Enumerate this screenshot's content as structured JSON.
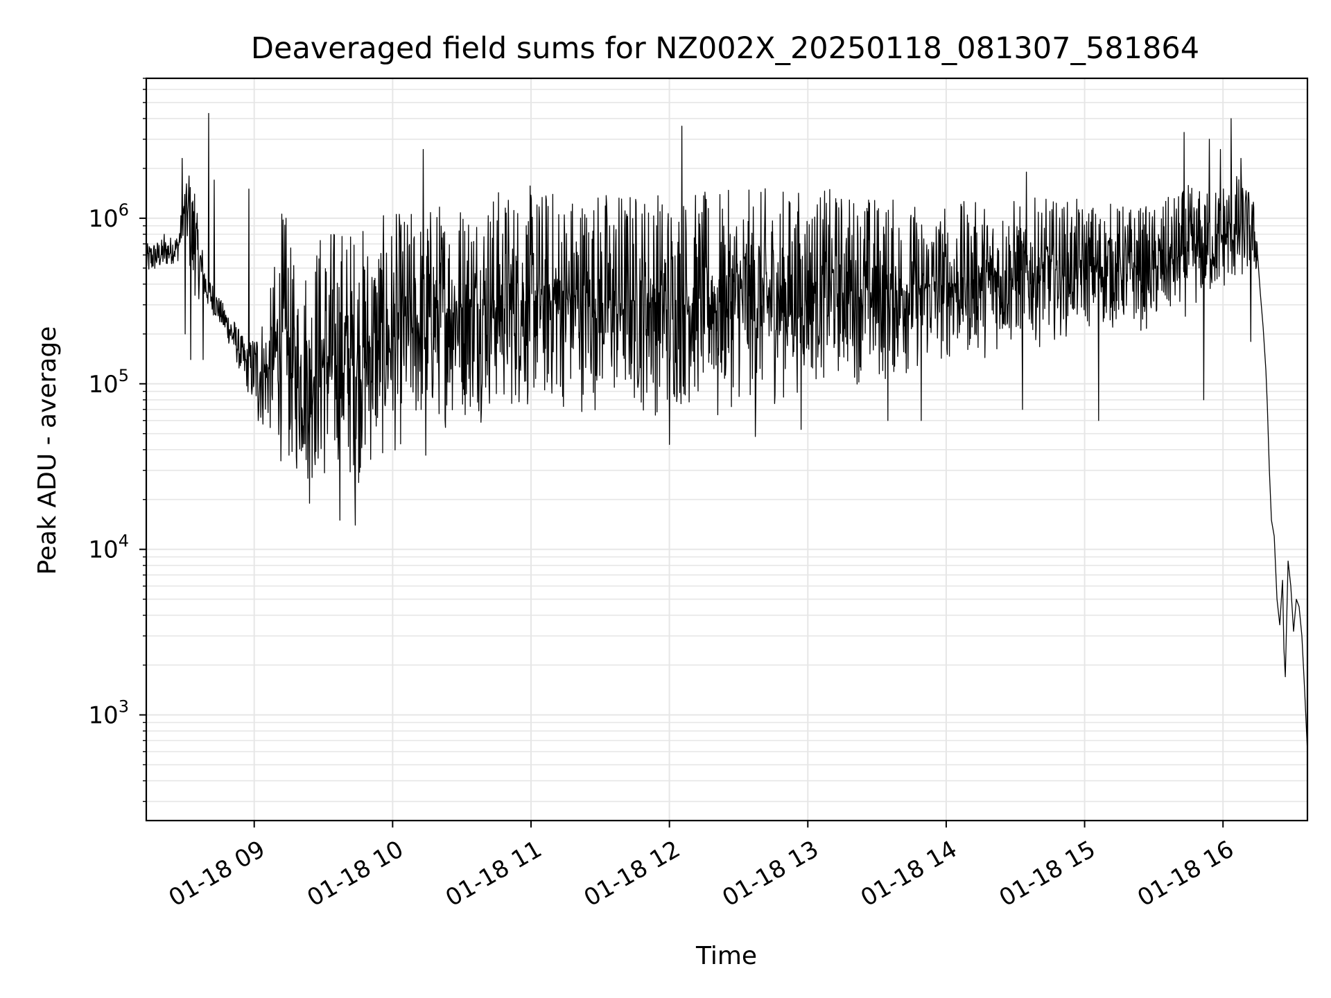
{
  "chart_data": {
    "type": "line",
    "title": "Deaveraged field sums for NZ002X_20250118_081307_581864",
    "xlabel": "Time",
    "ylabel": "Peak ADU - average",
    "x_unit": "hour of 2025-01-18",
    "xlim": [
      8.22,
      16.61
    ],
    "ylim": [
      230,
      7000000
    ],
    "yscale": "log",
    "grid": true,
    "legend": "none",
    "line_color": "#000000",
    "grid_color": "#e6e6e6",
    "x_ticks": [
      {
        "value": 9,
        "label": "01-18 09"
      },
      {
        "value": 10,
        "label": "01-18 10"
      },
      {
        "value": 11,
        "label": "01-18 11"
      },
      {
        "value": 12,
        "label": "01-18 12"
      },
      {
        "value": 13,
        "label": "01-18 13"
      },
      {
        "value": 14,
        "label": "01-18 14"
      },
      {
        "value": 15,
        "label": "01-18 15"
      },
      {
        "value": 16,
        "label": "01-18 16"
      }
    ],
    "y_ticks": [
      {
        "value": 1000,
        "base": "10",
        "exp": "3"
      },
      {
        "value": 10000,
        "base": "10",
        "exp": "4"
      },
      {
        "value": 100000,
        "base": "10",
        "exp": "5"
      },
      {
        "value": 1000000,
        "base": "10",
        "exp": "6"
      }
    ],
    "series": [
      {
        "envelope": [
          {
            "x": 8.22,
            "low": 450000,
            "high": 700000
          },
          {
            "x": 8.45,
            "low": 550000,
            "high": 800000
          },
          {
            "x": 8.5,
            "low": 900000,
            "high": 1600000
          },
          {
            "x": 8.55,
            "low": 350000,
            "high": 1700000
          },
          {
            "x": 8.65,
            "low": 300000,
            "high": 500000
          },
          {
            "x": 8.75,
            "low": 230000,
            "high": 330000
          },
          {
            "x": 8.85,
            "low": 150000,
            "high": 250000
          },
          {
            "x": 8.95,
            "low": 90000,
            "high": 170000
          },
          {
            "x": 9.1,
            "low": 45000,
            "high": 300000
          },
          {
            "x": 9.2,
            "low": 30000,
            "high": 1200000
          },
          {
            "x": 9.3,
            "low": 24000,
            "high": 500000
          },
          {
            "x": 9.5,
            "low": 20000,
            "high": 1000000
          },
          {
            "x": 9.65,
            "low": 19000,
            "high": 1000000
          },
          {
            "x": 9.8,
            "low": 24000,
            "high": 950000
          },
          {
            "x": 10.0,
            "low": 33000,
            "high": 1100000
          },
          {
            "x": 10.2,
            "low": 45000,
            "high": 1200000
          },
          {
            "x": 10.4,
            "low": 52000,
            "high": 1450000
          },
          {
            "x": 10.7,
            "low": 58000,
            "high": 1600000
          },
          {
            "x": 11.0,
            "low": 62000,
            "high": 1600000
          },
          {
            "x": 11.5,
            "low": 65000,
            "high": 1600000
          },
          {
            "x": 12.0,
            "low": 58000,
            "high": 1600000
          },
          {
            "x": 12.3,
            "low": 72000,
            "high": 1450000
          },
          {
            "x": 12.7,
            "low": 65000,
            "high": 1550000
          },
          {
            "x": 13.0,
            "low": 90000,
            "high": 1550000
          },
          {
            "x": 13.3,
            "low": 100000,
            "high": 1500000
          },
          {
            "x": 13.5,
            "low": 85000,
            "high": 1450000
          },
          {
            "x": 13.8,
            "low": 110000,
            "high": 1250000
          },
          {
            "x": 14.0,
            "low": 125000,
            "high": 1250000
          },
          {
            "x": 14.5,
            "low": 150000,
            "high": 1350000
          },
          {
            "x": 15.0,
            "low": 200000,
            "high": 1300000
          },
          {
            "x": 15.5,
            "low": 200000,
            "high": 1200000
          },
          {
            "x": 15.75,
            "low": 250000,
            "high": 1600000
          },
          {
            "x": 15.9,
            "low": 300000,
            "high": 1500000
          },
          {
            "x": 16.05,
            "low": 350000,
            "high": 2000000
          },
          {
            "x": 16.15,
            "low": 450000,
            "high": 1700000
          },
          {
            "x": 16.22,
            "low": 500000,
            "high": 1300000
          },
          {
            "x": 16.25,
            "low": 450000,
            "high": 800000
          }
        ],
        "spikes": [
          {
            "x": 8.35,
            "y": 800000
          },
          {
            "x": 8.48,
            "y": 2300000
          },
          {
            "x": 8.5,
            "y": 200000
          },
          {
            "x": 8.53,
            "y": 1800000
          },
          {
            "x": 8.54,
            "y": 140000
          },
          {
            "x": 8.57,
            "y": 1400000
          },
          {
            "x": 8.63,
            "y": 140000
          },
          {
            "x": 8.67,
            "y": 4300000
          },
          {
            "x": 8.71,
            "y": 1700000
          },
          {
            "x": 8.96,
            "y": 1500000
          },
          {
            "x": 9.03,
            "y": 60000
          },
          {
            "x": 9.23,
            "y": 1000000
          },
          {
            "x": 9.4,
            "y": 19000
          },
          {
            "x": 9.62,
            "y": 15000
          },
          {
            "x": 9.73,
            "y": 14000
          },
          {
            "x": 10.22,
            "y": 2600000
          },
          {
            "x": 10.24,
            "y": 37000
          },
          {
            "x": 12.0,
            "y": 43000
          },
          {
            "x": 12.09,
            "y": 3600000
          },
          {
            "x": 12.35,
            "y": 65000
          },
          {
            "x": 12.62,
            "y": 48000
          },
          {
            "x": 12.95,
            "y": 53000
          },
          {
            "x": 13.58,
            "y": 60000
          },
          {
            "x": 13.82,
            "y": 60000
          },
          {
            "x": 14.58,
            "y": 1900000
          },
          {
            "x": 14.55,
            "y": 70000
          },
          {
            "x": 15.1,
            "y": 60000
          },
          {
            "x": 15.72,
            "y": 3300000
          },
          {
            "x": 15.86,
            "y": 80000
          },
          {
            "x": 15.9,
            "y": 3000000
          },
          {
            "x": 15.98,
            "y": 2600000
          },
          {
            "x": 16.06,
            "y": 4000000
          },
          {
            "x": 16.13,
            "y": 2300000
          },
          {
            "x": 16.2,
            "y": 180000
          }
        ],
        "tail": [
          {
            "x": 16.25,
            "y": 600000
          },
          {
            "x": 16.27,
            "y": 350000
          },
          {
            "x": 16.29,
            "y": 220000
          },
          {
            "x": 16.31,
            "y": 120000
          },
          {
            "x": 16.32,
            "y": 75000
          },
          {
            "x": 16.335,
            "y": 30000
          },
          {
            "x": 16.35,
            "y": 15000
          },
          {
            "x": 16.37,
            "y": 12000
          },
          {
            "x": 16.39,
            "y": 5000
          },
          {
            "x": 16.41,
            "y": 3500
          },
          {
            "x": 16.43,
            "y": 6500
          },
          {
            "x": 16.44,
            "y": 2500
          },
          {
            "x": 16.45,
            "y": 1700
          },
          {
            "x": 16.47,
            "y": 8500
          },
          {
            "x": 16.49,
            "y": 6000
          },
          {
            "x": 16.51,
            "y": 3200
          },
          {
            "x": 16.53,
            "y": 5000
          },
          {
            "x": 16.55,
            "y": 4500
          },
          {
            "x": 16.57,
            "y": 3000
          },
          {
            "x": 16.59,
            "y": 1400
          },
          {
            "x": 16.61,
            "y": 600
          }
        ]
      }
    ]
  }
}
